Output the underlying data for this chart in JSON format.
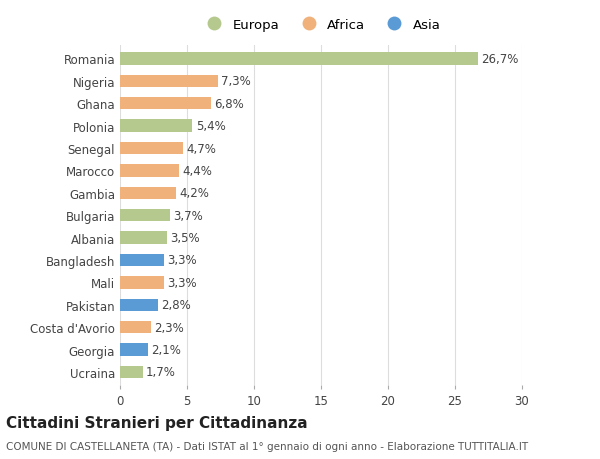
{
  "categories": [
    "Romania",
    "Nigeria",
    "Ghana",
    "Polonia",
    "Senegal",
    "Marocco",
    "Gambia",
    "Bulgaria",
    "Albania",
    "Bangladesh",
    "Mali",
    "Pakistan",
    "Costa d'Avorio",
    "Georgia",
    "Ucraina"
  ],
  "values": [
    26.7,
    7.3,
    6.8,
    5.4,
    4.7,
    4.4,
    4.2,
    3.7,
    3.5,
    3.3,
    3.3,
    2.8,
    2.3,
    2.1,
    1.7
  ],
  "labels": [
    "26,7%",
    "7,3%",
    "6,8%",
    "5,4%",
    "4,7%",
    "4,4%",
    "4,2%",
    "3,7%",
    "3,5%",
    "3,3%",
    "3,3%",
    "2,8%",
    "2,3%",
    "2,1%",
    "1,7%"
  ],
  "continents": [
    "Europa",
    "Africa",
    "Africa",
    "Europa",
    "Africa",
    "Africa",
    "Africa",
    "Europa",
    "Europa",
    "Asia",
    "Africa",
    "Asia",
    "Africa",
    "Asia",
    "Europa"
  ],
  "colors": {
    "Europa": "#b5c98e",
    "Africa": "#f0b27a",
    "Asia": "#5b9bd5"
  },
  "legend_order": [
    "Europa",
    "Africa",
    "Asia"
  ],
  "xlim": [
    0,
    30
  ],
  "xticks": [
    0,
    5,
    10,
    15,
    20,
    25,
    30
  ],
  "title": "Cittadini Stranieri per Cittadinanza",
  "subtitle": "COMUNE DI CASTELLANETA (TA) - Dati ISTAT al 1° gennaio di ogni anno - Elaborazione TUTTITALIA.IT",
  "background_color": "#ffffff",
  "grid_color": "#dddddd",
  "bar_height": 0.55,
  "label_fontsize": 8.5,
  "tick_fontsize": 8.5,
  "title_fontsize": 11,
  "subtitle_fontsize": 7.5
}
